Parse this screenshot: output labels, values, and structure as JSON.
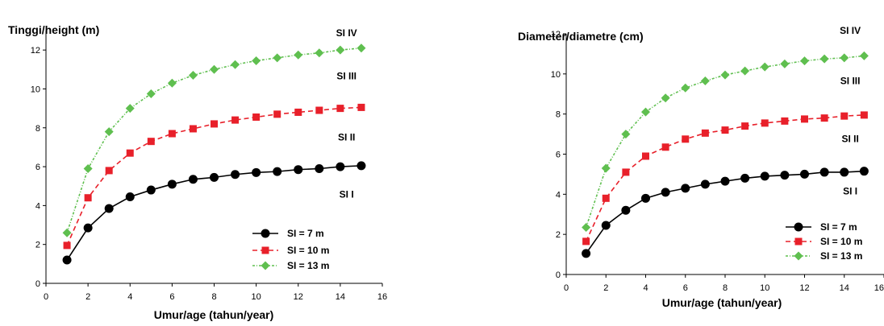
{
  "chart_data": [
    {
      "type": "line",
      "ylabel": "Tinggi/height (m)",
      "xlabel": "Umur/age (tahun/year)",
      "xlim": [
        0,
        16
      ],
      "ylim": [
        0,
        13
      ],
      "xticks": [
        "0",
        "2",
        "4",
        "6",
        "8",
        "10",
        "12",
        "14",
        "16"
      ],
      "yticks": [
        "0",
        "2",
        "4",
        "6",
        "8",
        "10",
        "12"
      ],
      "x": [
        1,
        2,
        3,
        4,
        5,
        6,
        7,
        8,
        9,
        10,
        11,
        12,
        13,
        14,
        15
      ],
      "series": [
        {
          "name": "SI = 7 m",
          "color": "#000000",
          "marker": "circle",
          "dash": "solid",
          "values": [
            1.2,
            2.85,
            3.85,
            4.45,
            4.8,
            5.1,
            5.35,
            5.45,
            5.6,
            5.7,
            5.75,
            5.85,
            5.9,
            6.0,
            6.05
          ]
        },
        {
          "name": "SI = 10 m",
          "color": "#e8202a",
          "marker": "square",
          "dash": "dashed",
          "values": [
            1.95,
            4.4,
            5.8,
            6.7,
            7.3,
            7.7,
            7.95,
            8.2,
            8.4,
            8.55,
            8.7,
            8.8,
            8.9,
            9.0,
            9.05
          ]
        },
        {
          "name": "SI = 13 m",
          "color": "#5fbf4f",
          "marker": "diamond",
          "dash": "dashdot",
          "values": [
            2.6,
            5.9,
            7.8,
            9.0,
            9.75,
            10.3,
            10.7,
            11.0,
            11.25,
            11.45,
            11.6,
            11.75,
            11.85,
            12.0,
            12.1
          ]
        }
      ],
      "annotations": [
        {
          "text": "SI IV",
          "x": 14.3,
          "y": 12.7
        },
        {
          "text": "SI III",
          "x": 14.3,
          "y": 10.5
        },
        {
          "text": "SI II",
          "x": 14.3,
          "y": 7.35
        },
        {
          "text": "SI I",
          "x": 14.3,
          "y": 4.4
        }
      ],
      "legend_position": "bottom-right"
    },
    {
      "type": "line",
      "ylabel": "Diameter/diametre (cm)",
      "xlabel": "Umur/age (tahun/year)",
      "xlim": [
        0,
        16
      ],
      "ylim": [
        0,
        12
      ],
      "xticks": [
        "0",
        "2",
        "4",
        "6",
        "8",
        "10",
        "12",
        "14",
        "16"
      ],
      "yticks": [
        "0",
        "2",
        "4",
        "6",
        "8",
        "10",
        "12"
      ],
      "x": [
        1,
        2,
        3,
        4,
        5,
        6,
        7,
        8,
        9,
        10,
        11,
        12,
        13,
        14,
        15
      ],
      "series": [
        {
          "name": "SI = 7 m",
          "color": "#000000",
          "marker": "circle",
          "dash": "solid",
          "values": [
            1.05,
            2.45,
            3.2,
            3.8,
            4.1,
            4.3,
            4.5,
            4.65,
            4.8,
            4.9,
            4.95,
            5.0,
            5.1,
            5.1,
            5.15
          ]
        },
        {
          "name": "SI = 10 m",
          "color": "#e8202a",
          "marker": "square",
          "dash": "dashed",
          "values": [
            1.65,
            3.8,
            5.1,
            5.9,
            6.35,
            6.75,
            7.05,
            7.2,
            7.4,
            7.55,
            7.65,
            7.75,
            7.8,
            7.9,
            7.95
          ]
        },
        {
          "name": "SI = 13 m",
          "color": "#5fbf4f",
          "marker": "diamond",
          "dash": "dashdot",
          "values": [
            2.35,
            5.3,
            7.0,
            8.1,
            8.8,
            9.3,
            9.65,
            9.95,
            10.15,
            10.35,
            10.5,
            10.65,
            10.75,
            10.8,
            10.9
          ]
        }
      ],
      "annotations": [
        {
          "text": "SI IV",
          "x": 14.3,
          "y": 12.0
        },
        {
          "text": "SI III",
          "x": 14.3,
          "y": 9.5
        },
        {
          "text": "SI II",
          "x": 14.3,
          "y": 6.6
        },
        {
          "text": "SI I",
          "x": 14.3,
          "y": 4.0
        }
      ],
      "legend_position": "bottom-right"
    }
  ]
}
